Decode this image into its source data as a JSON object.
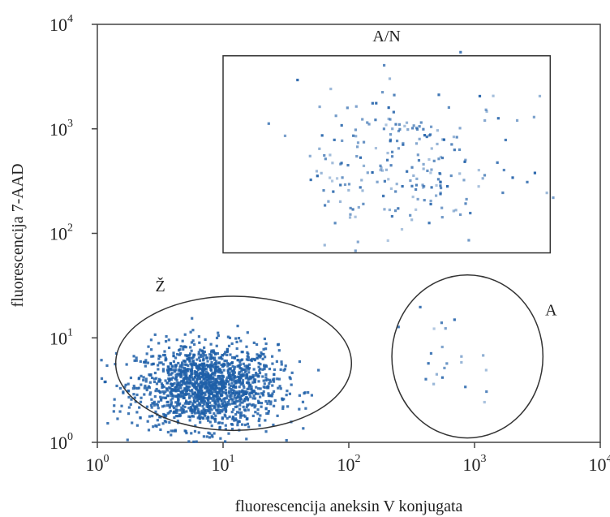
{
  "chart_data": {
    "type": "scatter",
    "title": "",
    "xlabel": "fluorescencija aneksin V konjugata",
    "ylabel": "fluorescencija 7-AAD",
    "xscale": "log",
    "yscale": "log",
    "xlim": [
      1,
      10000
    ],
    "ylim": [
      1,
      10000
    ],
    "x_ticks": [
      {
        "value": 1,
        "base": "10",
        "exp": "0"
      },
      {
        "value": 10,
        "base": "10",
        "exp": "1"
      },
      {
        "value": 100,
        "base": "10",
        "exp": "2"
      },
      {
        "value": 1000,
        "base": "10",
        "exp": "3"
      },
      {
        "value": 10000,
        "base": "10",
        "exp": "4"
      }
    ],
    "y_ticks": [
      {
        "value": 1,
        "base": "10",
        "exp": "0"
      },
      {
        "value": 10,
        "base": "10",
        "exp": "1"
      },
      {
        "value": 100,
        "base": "10",
        "exp": "2"
      },
      {
        "value": 1000,
        "base": "10",
        "exp": "3"
      },
      {
        "value": 10000,
        "base": "10",
        "exp": "4"
      }
    ],
    "grid": false,
    "point_color": "#1f5fa8",
    "gates": [
      {
        "label": "A/N",
        "shape": "rectangle",
        "x": [
          10,
          4000
        ],
        "y": [
          65,
          5000
        ]
      },
      {
        "label": "Ž",
        "shape": "ellipse",
        "cx": 12,
        "cy": 5,
        "x": [
          1.4,
          105
        ],
        "y": [
          1.3,
          25
        ]
      },
      {
        "label": "A",
        "shape": "ellipse",
        "cx": 800,
        "cy": 6,
        "x": [
          220,
          3500
        ],
        "y": [
          1.1,
          40
        ]
      }
    ],
    "clusters": [
      {
        "gate": "Ž",
        "x_center": 7.5,
        "y_center": 3.4,
        "x_spread": 0.28,
        "y_spread": 0.2,
        "count": 1600
      },
      {
        "gate": "A/N",
        "x_center": 300,
        "y_center": 450,
        "x_spread": 0.42,
        "y_spread": 0.38,
        "count": 230
      },
      {
        "gate": "A",
        "x_center": 600,
        "y_center": 6,
        "x_spread": 0.2,
        "y_spread": 0.28,
        "count": 22
      }
    ]
  }
}
